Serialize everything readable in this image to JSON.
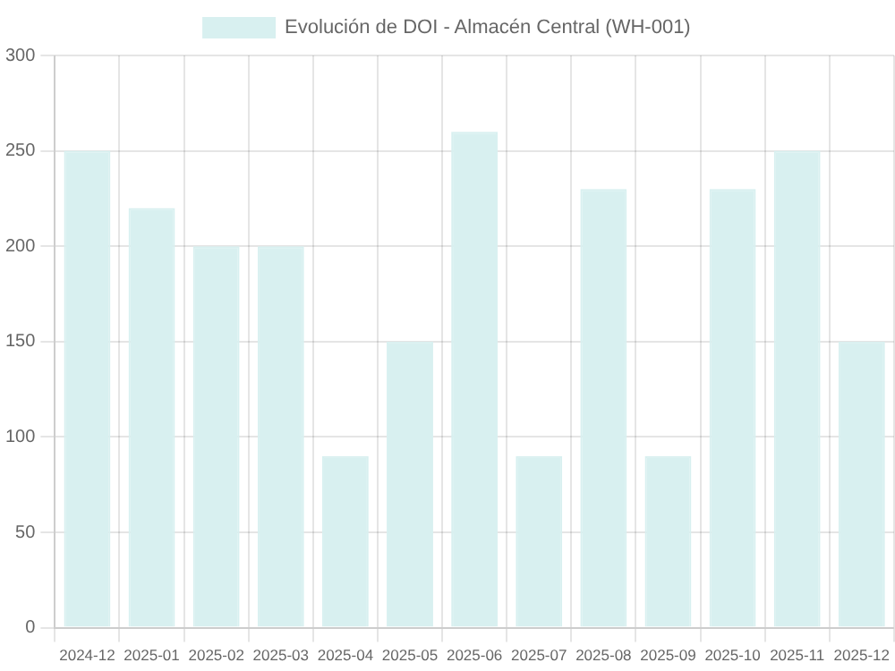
{
  "chart_data": {
    "type": "bar",
    "categories": [
      "2024-12",
      "2025-01",
      "2025-02",
      "2025-03",
      "2025-04",
      "2025-05",
      "2025-06",
      "2025-07",
      "2025-08",
      "2025-09",
      "2025-10",
      "2025-11",
      "2025-12"
    ],
    "series": [
      {
        "name": "Evolución de DOI - Almacén Central (WH-001)",
        "color": "#d8f0f0",
        "values": [
          250,
          220,
          200,
          200,
          90,
          150,
          260,
          90,
          230,
          90,
          230,
          250,
          150
        ]
      }
    ],
    "ylim": [
      0,
      300
    ],
    "yticks": [
      0,
      50,
      100,
      150,
      200,
      250,
      300
    ],
    "grid": true,
    "legend": "top"
  }
}
